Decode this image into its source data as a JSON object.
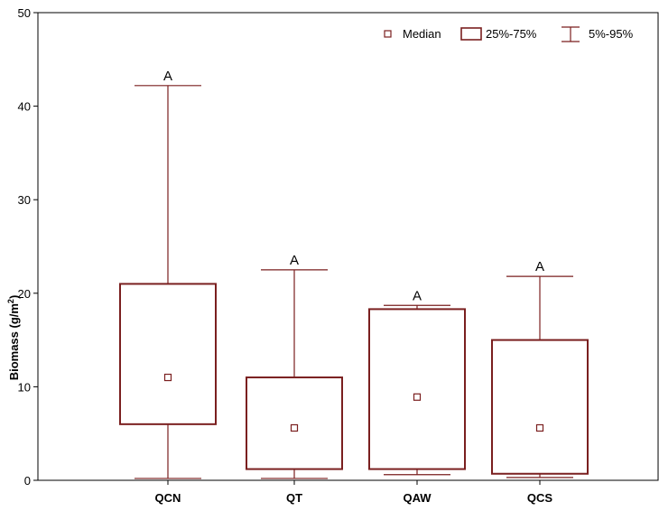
{
  "chart_data": {
    "type": "boxplot",
    "title": "",
    "xlabel": "",
    "ylabel": "Biomass (g/m",
    "ylabel_superscript": "2",
    "ylabel_suffix": ")",
    "ylim": [
      0,
      50
    ],
    "yticks": [
      0,
      10,
      20,
      30,
      40,
      50
    ],
    "grid": false,
    "legend_position": "top-right",
    "legend": {
      "median": "Median",
      "box": "25%-75%",
      "whisker": "5%-95%"
    },
    "colors": {
      "box": "#7a1f1f",
      "axis": "#000000"
    },
    "categories": [
      "QCN",
      "QT",
      "QAW",
      "QCS"
    ],
    "boxes": [
      {
        "category": "QCN",
        "p5": 0.2,
        "q1": 6.0,
        "median": 11.0,
        "q3": 21.0,
        "p95": 42.2,
        "letter": "A"
      },
      {
        "category": "QT",
        "p5": 0.2,
        "q1": 1.2,
        "median": 5.6,
        "q3": 11.0,
        "p95": 22.5,
        "letter": "A"
      },
      {
        "category": "QAW",
        "p5": 0.6,
        "q1": 1.2,
        "median": 8.9,
        "q3": 18.3,
        "p95": 18.7,
        "letter": "A"
      },
      {
        "category": "QCS",
        "p5": 0.3,
        "q1": 0.7,
        "median": 5.6,
        "q3": 15.0,
        "p95": 21.8,
        "letter": "A"
      }
    ]
  }
}
